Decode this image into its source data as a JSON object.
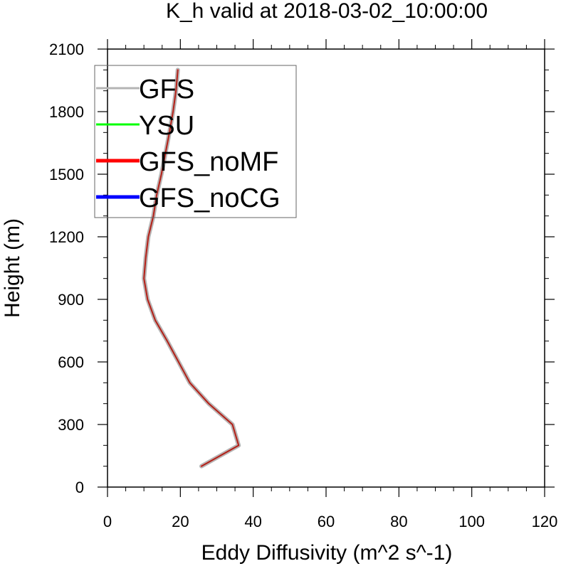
{
  "chart_data": {
    "type": "line",
    "title": "K_h valid at 2018-03-02_10:00:00",
    "xlabel": "Eddy Diffusivity (m^2 s^-1)",
    "ylabel": "Height (m)",
    "xlim": [
      0,
      120
    ],
    "ylim": [
      0,
      2100
    ],
    "xticks": [
      0,
      20,
      40,
      60,
      80,
      100,
      120
    ],
    "yticks": [
      0,
      300,
      600,
      900,
      1200,
      1500,
      1800,
      2100
    ],
    "grid": false,
    "legend_position": "top-left",
    "series": [
      {
        "name": "GFS",
        "color": "#b4b4b4",
        "points": [
          [
            25.8,
            100
          ],
          [
            36,
            200
          ],
          [
            34.3,
            300
          ],
          [
            27.8,
            400
          ],
          [
            22.6,
            500
          ],
          [
            19.5,
            600
          ],
          [
            16.4,
            700
          ],
          [
            13.1,
            800
          ],
          [
            11,
            900
          ],
          [
            10,
            1000
          ],
          [
            10.5,
            1100
          ],
          [
            11.2,
            1200
          ],
          [
            12.6,
            1300
          ],
          [
            13.5,
            1400
          ],
          [
            14.8,
            1500
          ],
          [
            15.9,
            1600
          ],
          [
            17,
            1700
          ],
          [
            18,
            1800
          ],
          [
            18.8,
            1900
          ],
          [
            19.3,
            2000
          ]
        ]
      },
      {
        "name": "YSU",
        "color": "#00ff00",
        "points": []
      },
      {
        "name": "GFS_noMF",
        "color": "#ff0000",
        "points": [
          [
            25.8,
            100
          ],
          [
            36,
            200
          ],
          [
            34.3,
            300
          ],
          [
            27.8,
            400
          ],
          [
            22.6,
            500
          ],
          [
            19.5,
            600
          ],
          [
            16.4,
            700
          ],
          [
            13.1,
            800
          ],
          [
            11,
            900
          ],
          [
            10,
            1000
          ],
          [
            10.5,
            1100
          ],
          [
            11.2,
            1200
          ],
          [
            12.6,
            1300
          ],
          [
            13.5,
            1400
          ],
          [
            14.8,
            1500
          ],
          [
            15.9,
            1600
          ],
          [
            17,
            1700
          ],
          [
            18,
            1800
          ],
          [
            18.8,
            1900
          ],
          [
            19.3,
            2000
          ]
        ]
      },
      {
        "name": "GFS_noCG",
        "color": "#0000ff",
        "points": []
      }
    ]
  }
}
